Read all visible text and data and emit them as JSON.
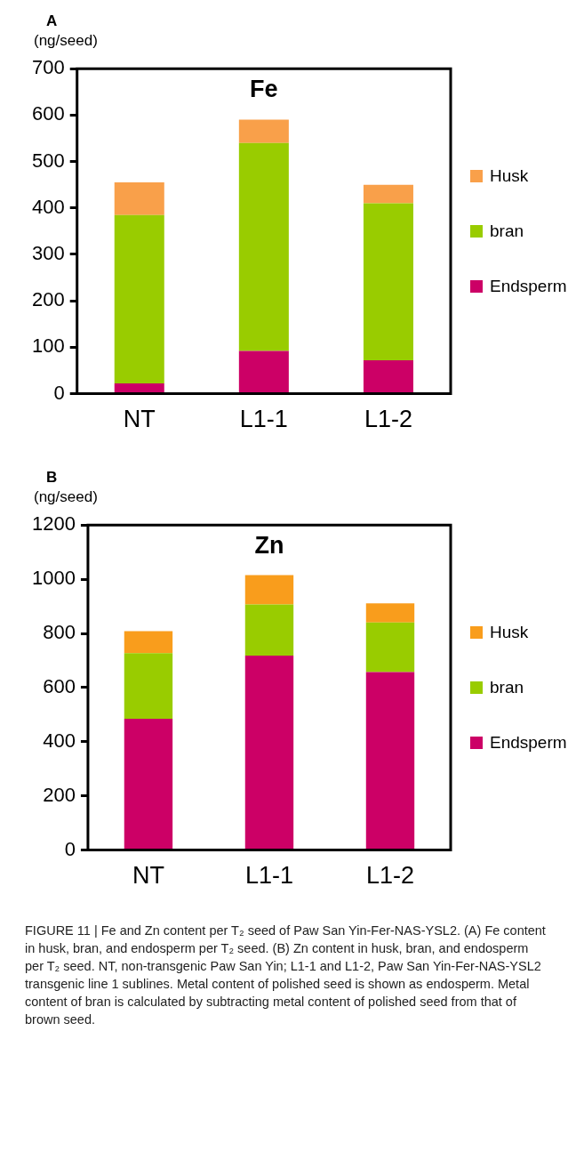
{
  "chart_data": [
    {
      "type": "bar",
      "title": "Fe",
      "ylabel": "(ng/seed)",
      "annotations": [
        "A"
      ],
      "categories": [
        "NT",
        "L1-1",
        "L1-2"
      ],
      "stacked": true,
      "legend": "right",
      "ylim": [
        0,
        700
      ],
      "yticks": [
        0,
        100,
        200,
        300,
        400,
        500,
        600,
        700
      ],
      "series": [
        {
          "name": "Endsperm",
          "color": "#cc0066",
          "values": [
            22,
            92,
            72
          ]
        },
        {
          "name": "bran",
          "color": "#99cc00",
          "values": [
            363,
            448,
            338
          ]
        },
        {
          "name": "Husk",
          "color": "#f9a04a",
          "values": [
            70,
            50,
            40
          ]
        }
      ]
    },
    {
      "type": "bar",
      "title": "Zn",
      "ylabel": "(ng/seed)",
      "annotations": [
        "B",
        "FIGURE 11 | Fe and Zn content per T₂ seed of Paw San Yin-Fer-NAS-YSL2. (A) Fe content in husk, bran, and endosperm per T₂ seed. (B) Zn content in husk, bran, and endosperm per T₂ seed. NT, non-transgenic Paw San Yin; L1-1 and L1-2, Paw San Yin-Fer-NAS-YSL2 transgenic line 1 sublines. Metal content of polished seed is shown as endosperm. Metal content of bran is calculated by subtracting metal content of polished seed from that of brown seed."
      ],
      "categories": [
        "NT",
        "L1-1",
        "L1-2"
      ],
      "stacked": true,
      "legend": "right",
      "ylim": [
        0,
        1200
      ],
      "yticks": [
        0,
        200,
        400,
        600,
        800,
        1000,
        1200
      ],
      "series": [
        {
          "name": "Endsperm",
          "color": "#cc0066",
          "values": [
            485,
            718,
            657
          ]
        },
        {
          "name": "bran",
          "color": "#99cc00",
          "values": [
            242,
            189,
            183
          ]
        },
        {
          "name": "Husk",
          "color": "#f99d1c",
          "values": [
            81,
            108,
            71
          ]
        }
      ]
    }
  ]
}
